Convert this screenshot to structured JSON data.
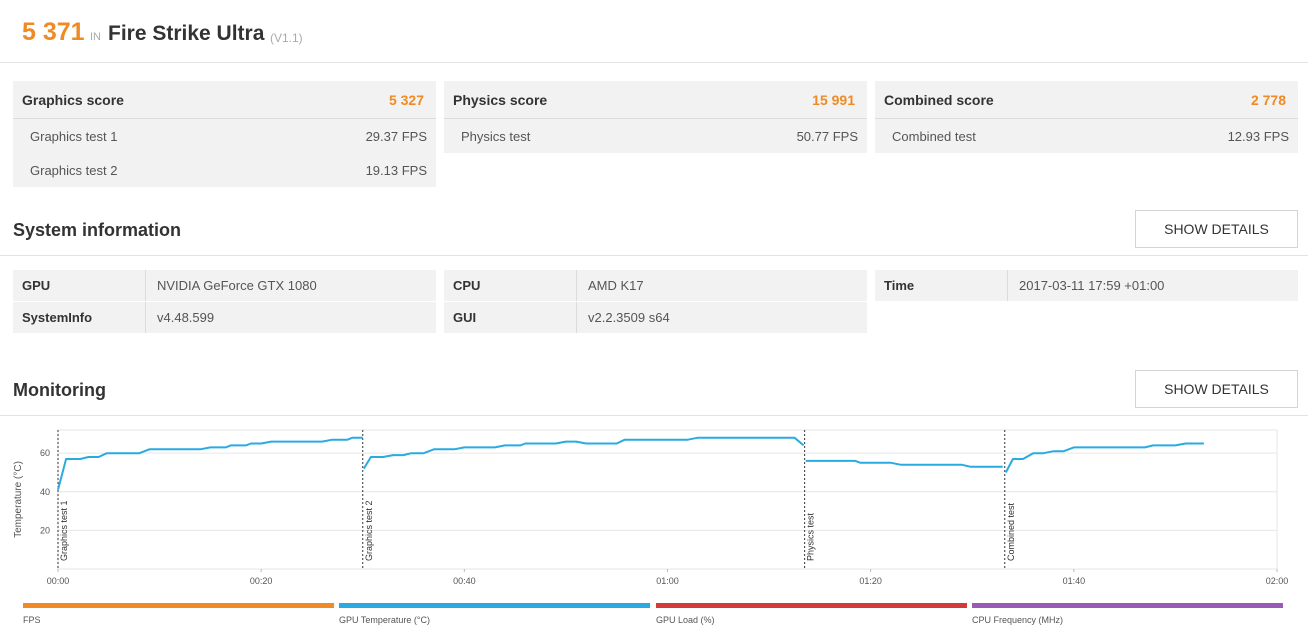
{
  "header": {
    "score": "5 371",
    "in_label": "IN",
    "benchmark": "Fire Strike Ultra",
    "version": "(V1.1)"
  },
  "scores": [
    {
      "title": "Graphics score",
      "value": "5 327",
      "tests": [
        {
          "name": "Graphics test 1",
          "value": "29.37 FPS"
        },
        {
          "name": "Graphics test 2",
          "value": "19.13 FPS"
        }
      ]
    },
    {
      "title": "Physics score",
      "value": "15 991",
      "tests": [
        {
          "name": "Physics test",
          "value": "50.77 FPS"
        }
      ]
    },
    {
      "title": "Combined score",
      "value": "2 778",
      "tests": [
        {
          "name": "Combined test",
          "value": "12.93 FPS"
        }
      ]
    }
  ],
  "system_info": {
    "title": "System information",
    "details_label": "SHOW DETAILS",
    "columns": [
      [
        {
          "key": "GPU",
          "value": "NVIDIA GeForce GTX 1080"
        },
        {
          "key": "SystemInfo",
          "value": "v4.48.599"
        }
      ],
      [
        {
          "key": "CPU",
          "value": "AMD K17"
        },
        {
          "key": "GUI",
          "value": "v2.2.3509 s64"
        }
      ],
      [
        {
          "key": "Time",
          "value": "2017-03-11 17:59 +01:00"
        }
      ]
    ]
  },
  "monitoring": {
    "title": "Monitoring",
    "details_label": "SHOW DETAILS",
    "legend": [
      {
        "name": "FPS",
        "color": "#f08a24"
      },
      {
        "name": "GPU Temperature (°C)",
        "color": "#29abe2"
      },
      {
        "name": "GPU Load (%)",
        "color": "#d43a3a"
      },
      {
        "name": "CPU Frequency (MHz)",
        "color": "#9b59b6"
      }
    ]
  },
  "chart_data": {
    "type": "line",
    "ylabel": "Temperature (°C)",
    "yticks": [
      20,
      40,
      60
    ],
    "ylim": [
      0,
      72
    ],
    "xticks": [
      "00:00",
      "00:20",
      "00:40",
      "01:00",
      "01:20",
      "01:40",
      "02:00"
    ],
    "xlim": [
      0,
      120
    ],
    "grid": true,
    "markers": [
      {
        "label": "Graphics test 1",
        "x": 0
      },
      {
        "label": "Graphics test 2",
        "x": 30
      },
      {
        "label": "Physics test",
        "x": 73.5
      },
      {
        "label": "Combined test",
        "x": 93.2
      }
    ],
    "series": [
      {
        "name": "GPU Temperature (°C)",
        "color": "#29abe2",
        "segments": [
          [
            [
              0,
              41
            ],
            [
              0.8,
              57
            ],
            [
              2.2,
              57
            ],
            [
              3,
              58
            ],
            [
              4,
              58
            ],
            [
              4.8,
              60
            ],
            [
              8,
              60
            ],
            [
              9,
              62
            ],
            [
              14,
              62
            ],
            [
              15,
              63
            ],
            [
              16.5,
              63
            ],
            [
              17,
              64
            ],
            [
              18.5,
              64
            ],
            [
              19,
              65
            ],
            [
              20,
              65
            ],
            [
              21,
              66
            ],
            [
              26,
              66
            ],
            [
              27,
              67
            ],
            [
              28.5,
              67
            ],
            [
              29,
              68
            ],
            [
              30,
              68
            ]
          ],
          [
            [
              30.1,
              52
            ],
            [
              30.8,
              58
            ],
            [
              32,
              58
            ],
            [
              33,
              59
            ],
            [
              34,
              59
            ],
            [
              34.8,
              60
            ],
            [
              36,
              60
            ],
            [
              37,
              62
            ],
            [
              39,
              62
            ],
            [
              40,
              63
            ],
            [
              43,
              63
            ],
            [
              44,
              64
            ],
            [
              45.5,
              64
            ],
            [
              46,
              65
            ],
            [
              49,
              65
            ],
            [
              50,
              66
            ],
            [
              51,
              66
            ],
            [
              52,
              65
            ],
            [
              55,
              65
            ],
            [
              55.8,
              67
            ],
            [
              62,
              67
            ],
            [
              63,
              68
            ],
            [
              72.5,
              68
            ],
            [
              73.4,
              64
            ]
          ],
          [
            [
              73.6,
              56
            ],
            [
              78.5,
              56
            ],
            [
              79,
              55
            ],
            [
              82,
              55
            ],
            [
              83,
              54
            ],
            [
              89,
              54
            ],
            [
              89.8,
              53
            ],
            [
              93,
              53
            ]
          ],
          [
            [
              93.3,
              50
            ],
            [
              94,
              57
            ],
            [
              95,
              57
            ],
            [
              96,
              60
            ],
            [
              97,
              60
            ],
            [
              98,
              61
            ],
            [
              99,
              61
            ],
            [
              100,
              63
            ],
            [
              107,
              63
            ],
            [
              107.8,
              64
            ],
            [
              110,
              64
            ],
            [
              111,
              65
            ],
            [
              112.8,
              65
            ]
          ]
        ]
      }
    ]
  }
}
